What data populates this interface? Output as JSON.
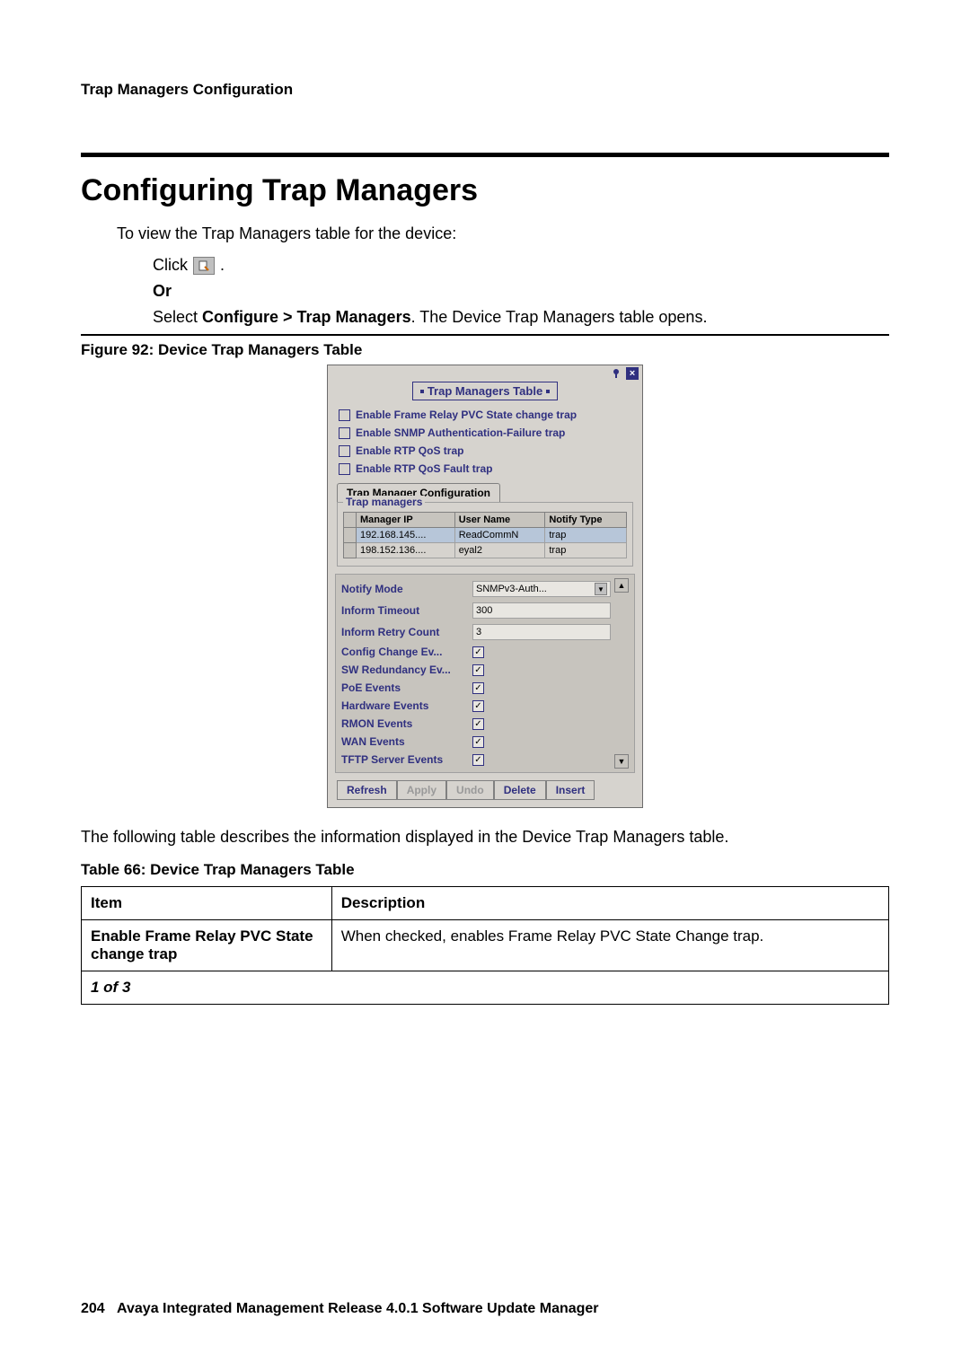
{
  "header": {
    "text": "Trap Managers Configuration"
  },
  "section": {
    "title": "Configuring Trap Managers"
  },
  "intro": "To view the Trap Managers table for the device:",
  "steps": {
    "click": "Click",
    "period": ".",
    "or": "Or",
    "select_prefix": "Select ",
    "select_bold": "Configure > Trap Managers",
    "select_suffix": ". The Device Trap Managers table opens."
  },
  "figure": {
    "caption": "Figure 92: Device Trap Managers Table"
  },
  "dialog": {
    "title": "Trap Managers Table",
    "checkboxes": [
      {
        "label": "Enable Frame Relay PVC State change trap",
        "checked": false
      },
      {
        "label": "Enable SNMP Authentication-Failure trap",
        "checked": false
      },
      {
        "label": "Enable RTP QoS trap",
        "checked": false
      },
      {
        "label": "Enable RTP QoS Fault trap",
        "checked": false
      }
    ],
    "tab": "Trap Manager Configuration",
    "fieldset_legend": "Trap managers",
    "table": {
      "columns": [
        "Manager IP",
        "User Name",
        "Notify Type"
      ],
      "rows": [
        {
          "cells": [
            "192.168.145....",
            "ReadCommN",
            "trap"
          ],
          "selected": true
        },
        {
          "cells": [
            "198.152.136....",
            "eyal2",
            "trap"
          ],
          "selected": false
        }
      ]
    },
    "props": [
      {
        "label": "Notify Mode",
        "type": "dropdown",
        "value": "SNMPv3-Auth..."
      },
      {
        "label": "Inform Timeout",
        "type": "text",
        "value": "300"
      },
      {
        "label": "Inform Retry Count",
        "type": "text",
        "value": "3"
      },
      {
        "label": "Config Change Ev...",
        "type": "check",
        "checked": true
      },
      {
        "label": "SW Redundancy Ev...",
        "type": "check",
        "checked": true
      },
      {
        "label": "PoE Events",
        "type": "check",
        "checked": true
      },
      {
        "label": "Hardware Events",
        "type": "check",
        "checked": true
      },
      {
        "label": "RMON Events",
        "type": "check",
        "checked": true
      },
      {
        "label": "WAN Events",
        "type": "check",
        "checked": true
      },
      {
        "label": "TFTP Server Events",
        "type": "check",
        "checked": true
      }
    ],
    "buttons": [
      {
        "label": "Refresh",
        "disabled": false
      },
      {
        "label": "Apply",
        "disabled": true
      },
      {
        "label": "Undo",
        "disabled": true
      },
      {
        "label": "Delete",
        "disabled": false
      },
      {
        "label": "Insert",
        "disabled": false
      }
    ]
  },
  "after_figure": "The following table describes the information displayed in the Device Trap Managers table.",
  "desc_table": {
    "caption": "Table 66: Device Trap Managers Table",
    "head": [
      "Item",
      "Description"
    ],
    "rows": [
      [
        "Enable Frame Relay PVC State change trap",
        "When checked, enables Frame Relay PVC State Change trap."
      ]
    ],
    "pager": "1 of 3"
  },
  "footer": {
    "page_num": "204",
    "text": "Avaya Integrated Management Release 4.0.1 Software Update Manager"
  },
  "colors": {
    "dialog_bg": "#d6d3ce",
    "accent": "#303080"
  }
}
